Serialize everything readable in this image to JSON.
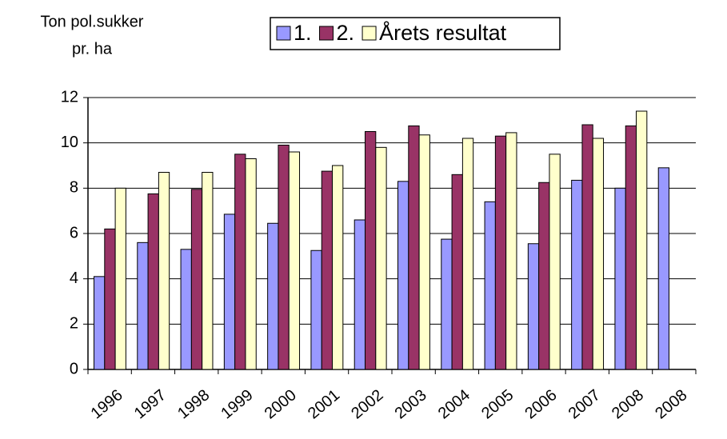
{
  "chart_data": {
    "type": "bar",
    "y_label": [
      "Ton pol.sukker",
      "pr. ha"
    ],
    "categories": [
      "1996",
      "1997",
      "1998",
      "1999",
      "2000",
      "2001",
      "2002",
      "2003",
      "2004",
      "2005",
      "2006",
      "2007",
      "2008",
      "2008"
    ],
    "series": [
      {
        "name": "1.",
        "color": "#9999ff",
        "values": [
          4.1,
          5.6,
          5.3,
          6.85,
          6.45,
          5.25,
          6.6,
          8.3,
          5.75,
          7.4,
          5.55,
          8.35,
          8.0,
          8.9
        ]
      },
      {
        "name": "2.",
        "color": "#993366",
        "values": [
          6.2,
          7.75,
          7.95,
          9.5,
          9.9,
          8.75,
          10.5,
          10.75,
          8.6,
          10.3,
          8.25,
          10.8,
          10.75,
          null
        ]
      },
      {
        "name": "Årets resultat",
        "color": "#ffffcc",
        "values": [
          8.0,
          8.7,
          8.7,
          9.3,
          9.6,
          9.0,
          9.8,
          10.35,
          10.2,
          10.45,
          9.5,
          10.2,
          11.4,
          null
        ]
      }
    ],
    "ylim": [
      0,
      12
    ],
    "yticks": [
      0,
      2,
      4,
      6,
      8,
      10,
      12
    ],
    "grid": true,
    "legend": "top"
  }
}
